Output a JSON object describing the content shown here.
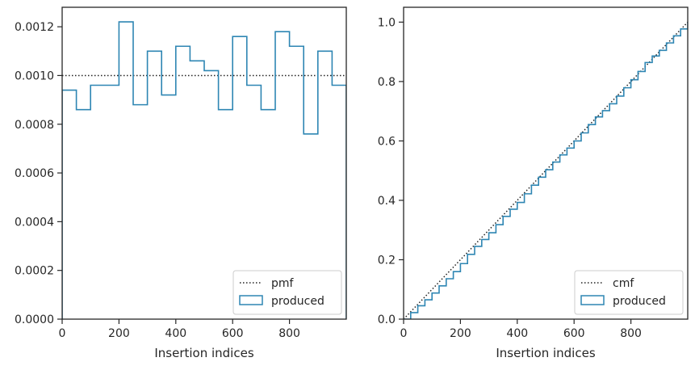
{
  "chart_data": [
    {
      "type": "step",
      "xlabel": "Insertion indices",
      "ylabel": "",
      "xlim": [
        0,
        1000
      ],
      "ylim": [
        0,
        0.00128
      ],
      "xticks": [
        0,
        200,
        400,
        600,
        800
      ],
      "xtick_labels": [
        "0",
        "200",
        "400",
        "600",
        "800"
      ],
      "yticks": [
        0,
        0.0002,
        0.0004,
        0.0006,
        0.0008,
        0.001,
        0.0012
      ],
      "ytick_labels": [
        "0.0000",
        "0.0002",
        "0.0004",
        "0.0006",
        "0.0008",
        "0.0010",
        "0.0012"
      ],
      "grid": false,
      "legend_position": "lower-right",
      "reference": {
        "name": "pmf",
        "value": 0.001,
        "style": "dotted",
        "color": "#222222"
      },
      "series": [
        {
          "name": "produced",
          "color": "#2e86b3",
          "bin_edges": [
            0,
            50,
            100,
            150,
            200,
            250,
            300,
            350,
            400,
            450,
            500,
            550,
            600,
            650,
            700,
            750,
            800,
            850,
            900,
            950,
            1000
          ],
          "values": [
            0.00094,
            0.00086,
            0.00096,
            0.00096,
            0.00122,
            0.00088,
            0.0011,
            0.00092,
            0.00112,
            0.00106,
            0.00102,
            0.00086,
            0.00116,
            0.00096,
            0.00086,
            0.00118,
            0.00112,
            0.00076,
            0.0011,
            0.00096
          ]
        }
      ]
    },
    {
      "type": "step",
      "xlabel": "Insertion indices",
      "ylabel": "",
      "xlim": [
        0,
        1000
      ],
      "ylim": [
        0,
        1.05
      ],
      "xticks": [
        0,
        200,
        400,
        600,
        800
      ],
      "xtick_labels": [
        "0",
        "200",
        "400",
        "600",
        "800"
      ],
      "yticks": [
        0,
        0.2,
        0.4,
        0.6,
        0.8,
        1.0
      ],
      "ytick_labels": [
        "0.0",
        "0.2",
        "0.4",
        "0.6",
        "0.8",
        "1.0"
      ],
      "grid": false,
      "legend_position": "lower-right",
      "reference": {
        "name": "cmf",
        "points": [
          [
            0,
            0
          ],
          [
            1000,
            1
          ]
        ],
        "style": "dotted",
        "color": "#222222"
      },
      "series": [
        {
          "name": "produced",
          "color": "#2e86b3",
          "x": [
            0,
            25,
            50,
            75,
            100,
            125,
            150,
            175,
            200,
            225,
            250,
            275,
            300,
            325,
            350,
            375,
            400,
            425,
            450,
            475,
            500,
            525,
            550,
            575,
            600,
            625,
            650,
            675,
            700,
            725,
            750,
            775,
            800,
            825,
            850,
            875,
            900,
            925,
            950,
            975,
            1000
          ],
          "y": [
            0,
            0.022,
            0.045,
            0.065,
            0.088,
            0.112,
            0.136,
            0.16,
            0.187,
            0.218,
            0.245,
            0.268,
            0.291,
            0.318,
            0.346,
            0.37,
            0.393,
            0.422,
            0.451,
            0.478,
            0.503,
            0.529,
            0.553,
            0.576,
            0.6,
            0.627,
            0.655,
            0.681,
            0.702,
            0.725,
            0.751,
            0.779,
            0.806,
            0.834,
            0.864,
            0.886,
            0.905,
            0.93,
            0.954,
            0.977,
            1.0
          ]
        }
      ]
    }
  ]
}
